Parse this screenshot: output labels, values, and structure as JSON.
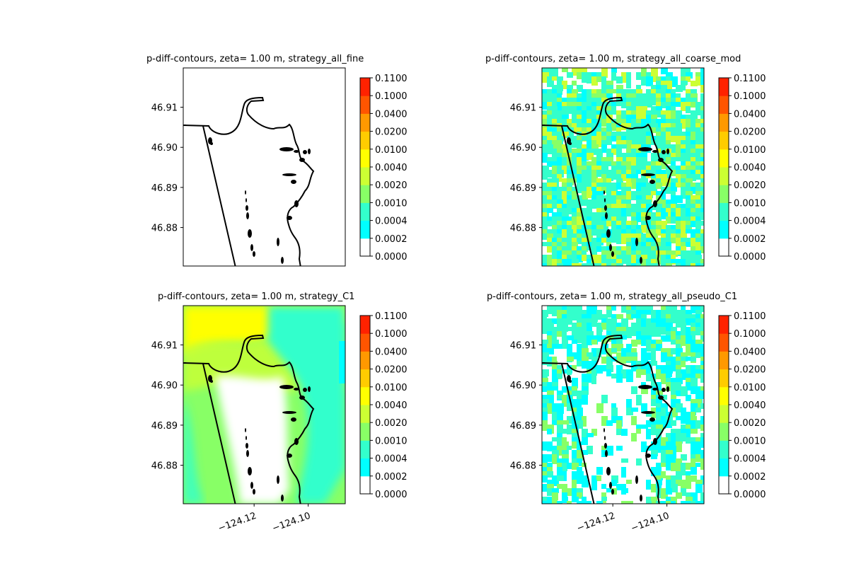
{
  "figure": {
    "cbar_levels": [
      "0.0000",
      "0.0002",
      "0.0004",
      "0.0010",
      "0.0020",
      "0.0040",
      "0.0100",
      "0.0200",
      "0.0400",
      "0.1000",
      "0.1100"
    ],
    "cbar_colors": [
      "#ffffff",
      "#00ffff",
      "#33ffcc",
      "#88ff66",
      "#ccff33",
      "#ffff00",
      "#ffcc00",
      "#ff9900",
      "#ff5500",
      "#ff2200"
    ]
  },
  "chart_data": [
    {
      "type": "heatmap",
      "title": "p-diff-contours, zeta= 1.00 m, strategy_all_fine",
      "yticks": [
        "46.91",
        "46.90",
        "46.89",
        "46.88"
      ],
      "xticks": [],
      "shading": "none"
    },
    {
      "type": "heatmap",
      "title": "p-diff-contours, zeta= 1.00 m, strategy_all_coarse_mod",
      "yticks": [
        "46.91",
        "46.90",
        "46.89",
        "46.88"
      ],
      "xticks": [],
      "shading": "patchy-cyan-green"
    },
    {
      "type": "heatmap",
      "title": "p-diff-contours, zeta= 1.00 m, strategy_C1",
      "yticks": [
        "46.91",
        "46.90",
        "46.89",
        "46.88"
      ],
      "xticks": [
        "−124.12",
        "−124.10"
      ],
      "shading": "smooth-yellow-green"
    },
    {
      "type": "heatmap",
      "title": "p-diff-contours, zeta= 1.00 m, strategy_all_pseudo_C1",
      "yticks": [
        "46.91",
        "46.90",
        "46.89",
        "46.88"
      ],
      "xticks": [
        "−124.12",
        "−124.10"
      ],
      "shading": "sparse-cyan"
    }
  ]
}
